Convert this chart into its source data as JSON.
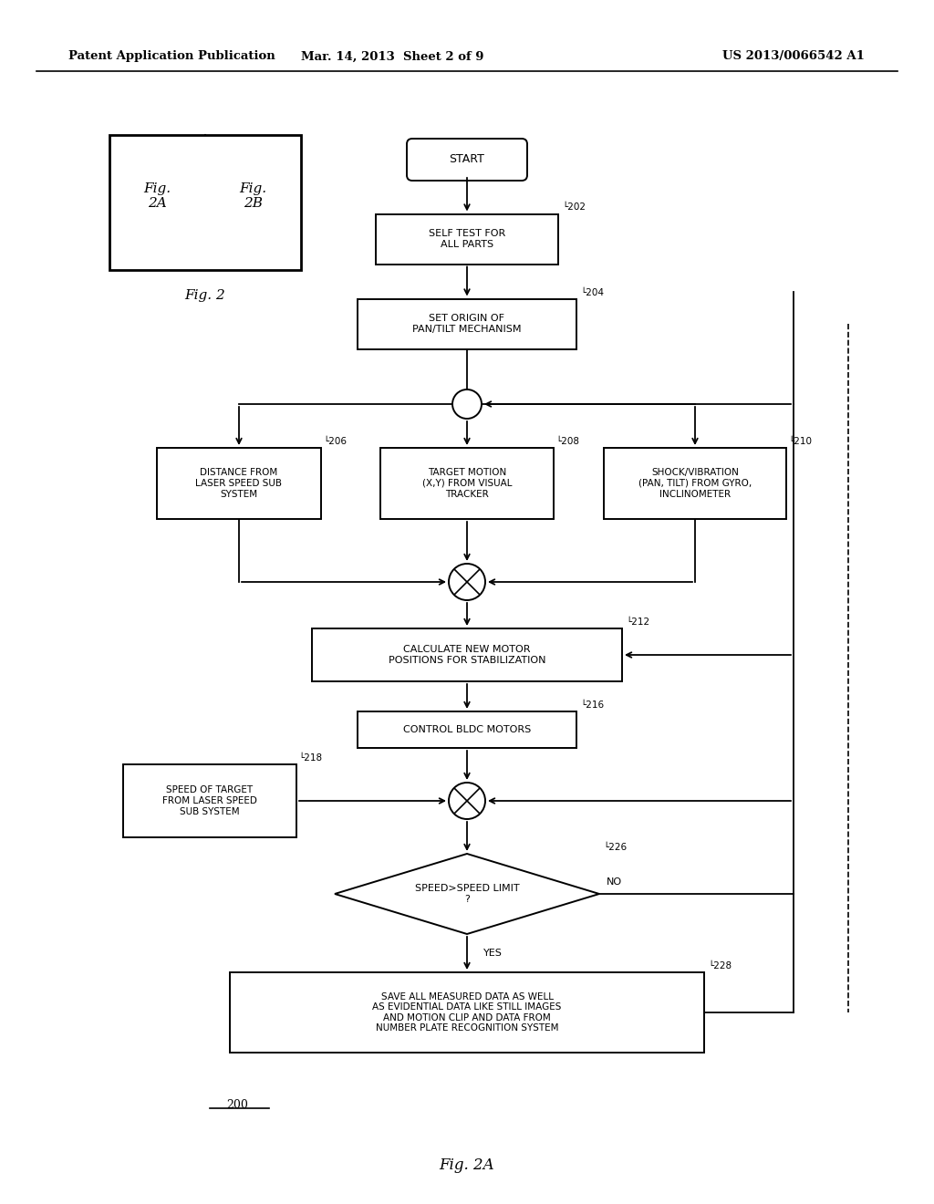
{
  "bg_color": "#ffffff",
  "header_left": "Patent Application Publication",
  "header_mid": "Mar. 14, 2013  Sheet 2 of 9",
  "header_right": "US 2013/0066542 A1",
  "footer_label": "Fig. 2A",
  "diagram_ref": "200"
}
